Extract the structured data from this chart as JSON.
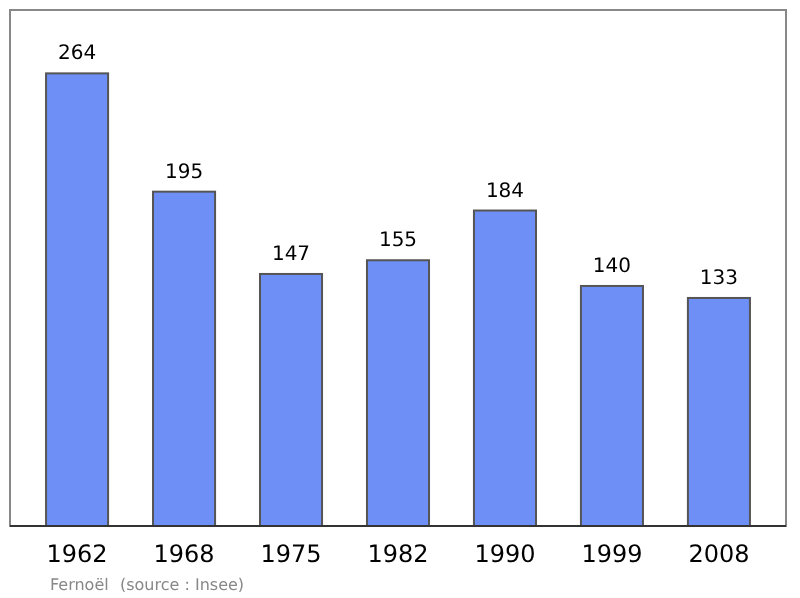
{
  "chart_data": {
    "type": "bar",
    "categories": [
      "1962",
      "1968",
      "1975",
      "1982",
      "1990",
      "1999",
      "2008"
    ],
    "values": [
      264,
      195,
      147,
      155,
      184,
      140,
      133
    ],
    "color": "#6d8ff6",
    "data_labels": true,
    "annotations": [
      "Fernoël",
      "(source : Insee)"
    ]
  }
}
